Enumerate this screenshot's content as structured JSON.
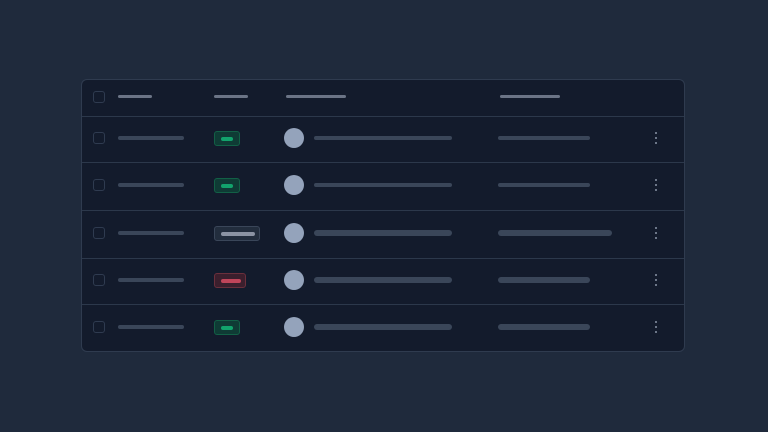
{
  "colors": {
    "page_background": "#1f2a3c",
    "table_background": "#131b2c",
    "success": "#12a36c",
    "danger": "#c0455a",
    "neutral": "#8b93a3",
    "avatar": "#94a3bb"
  },
  "icons": {
    "row_menu": "kebab-vertical-icon",
    "select": "checkbox-icon"
  },
  "rows": [
    {
      "status": "success"
    },
    {
      "status": "success"
    },
    {
      "status": "neutral"
    },
    {
      "status": "danger"
    },
    {
      "status": "success"
    }
  ]
}
